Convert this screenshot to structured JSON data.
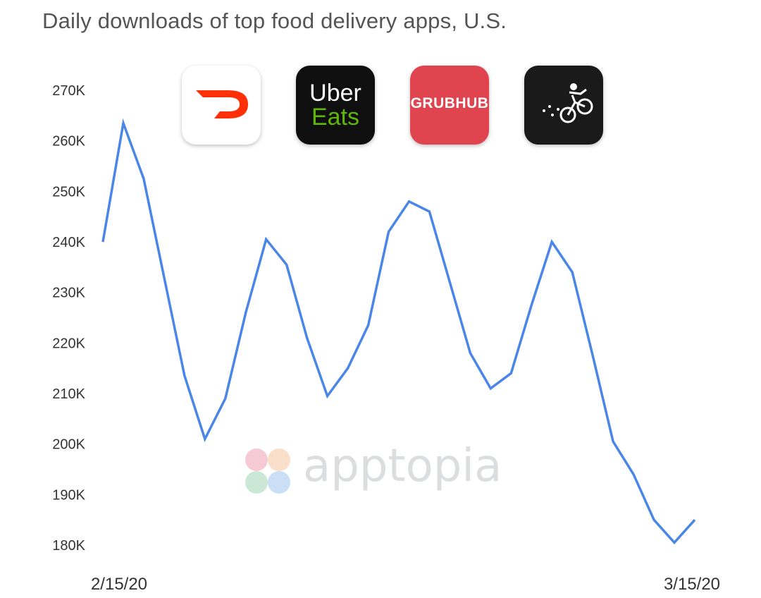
{
  "title": "Daily downloads of top food delivery apps, U.S.",
  "logos": {
    "doordash": {
      "icon": "doordash-logo-icon",
      "color": "#ff3008"
    },
    "ubereats": {
      "line1": "Uber",
      "line2": "Eats",
      "icon": "uber-eats-logo-icon",
      "color": "#5fb709"
    },
    "grubhub": {
      "text": "GRUBHUB",
      "icon": "grubhub-logo-icon",
      "color": "#e0444e"
    },
    "postmates": {
      "icon": "postmates-logo-icon",
      "color": "#1a1a1a"
    }
  },
  "watermark": {
    "text": "apptopia",
    "icon": "apptopia-logo-icon"
  },
  "chart_data": {
    "type": "line",
    "title": "Daily downloads of top food delivery apps, U.S.",
    "xlabel": "",
    "ylabel": "",
    "x_tick_labels": [
      "2/15/20",
      "3/15/20"
    ],
    "y_tick_labels": [
      "270K",
      "260K",
      "250K",
      "240K",
      "230K",
      "220K",
      "210K",
      "200K",
      "190K",
      "180K"
    ],
    "ylim": [
      180000,
      270000
    ],
    "grid": false,
    "line_color": "#4a86e8",
    "x": [
      "2/15/20",
      "2/16/20",
      "2/17/20",
      "2/18/20",
      "2/19/20",
      "2/20/20",
      "2/21/20",
      "2/22/20",
      "2/23/20",
      "2/24/20",
      "2/25/20",
      "2/26/20",
      "2/27/20",
      "2/28/20",
      "2/29/20",
      "3/1/20",
      "3/2/20",
      "3/3/20",
      "3/4/20",
      "3/5/20",
      "3/6/20",
      "3/7/20",
      "3/8/20",
      "3/9/20",
      "3/10/20",
      "3/11/20",
      "3/12/20",
      "3/13/20",
      "3/14/20",
      "3/15/20"
    ],
    "series": [
      {
        "values": [
          240000,
          263500,
          252500,
          233000,
          213500,
          201000,
          209000,
          226000,
          240500,
          235500,
          221000,
          209500,
          215000,
          223500,
          242000,
          248000,
          246000,
          232000,
          218000,
          211000,
          214000,
          227500,
          240000,
          234000,
          217500,
          200500,
          194000,
          185000,
          180500,
          185000
        ]
      }
    ]
  }
}
